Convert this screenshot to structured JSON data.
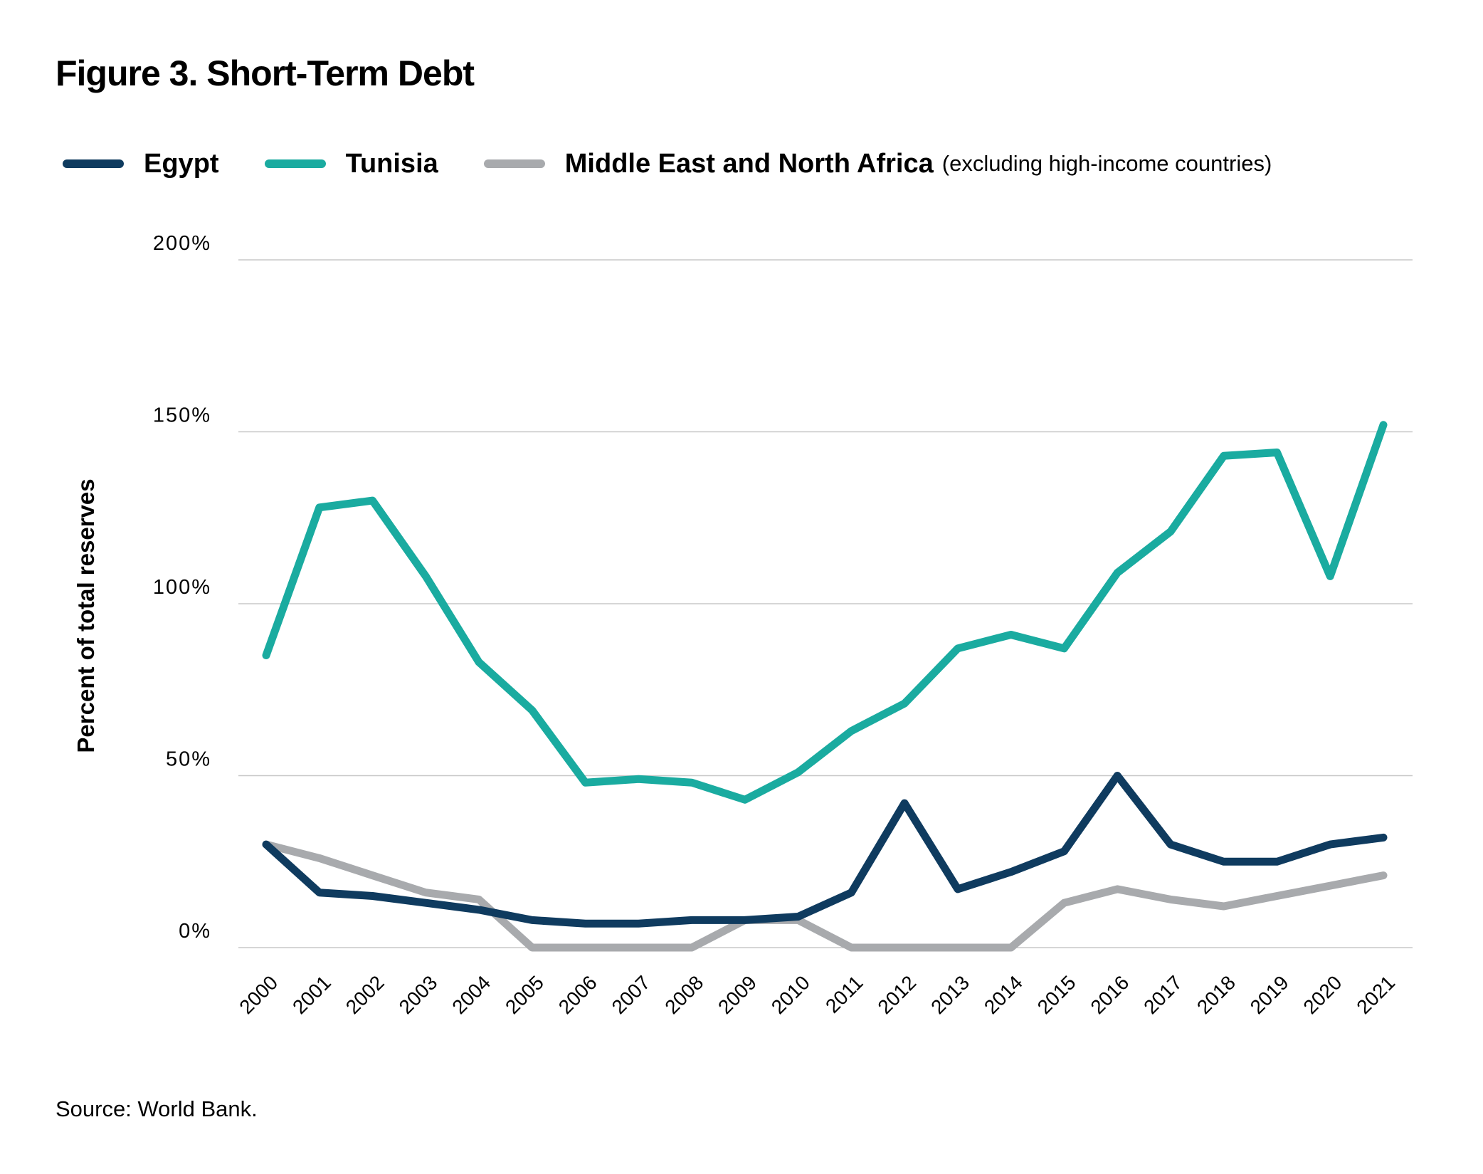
{
  "chart_data": {
    "type": "line",
    "title": "Figure 3. Short-Term Debt",
    "ylabel": "Percent of total reserves",
    "xlabel": "",
    "ylim": [
      0,
      200
    ],
    "yticks": [
      {
        "value": 0,
        "label": "0%"
      },
      {
        "value": 50,
        "label": "50%"
      },
      {
        "value": 100,
        "label": "100%"
      },
      {
        "value": 150,
        "label": "150%"
      },
      {
        "value": 200,
        "label": "200%"
      }
    ],
    "x": [
      "2000",
      "2001",
      "2002",
      "2003",
      "2004",
      "2005",
      "2006",
      "2007",
      "2008",
      "2009",
      "2010",
      "2011",
      "2012",
      "2013",
      "2014",
      "2015",
      "2016",
      "2017",
      "2018",
      "2019",
      "2020",
      "2021"
    ],
    "grid": "horizontal",
    "legend_position": "top",
    "series": [
      {
        "name": "Egypt",
        "color": "#0f3b5f",
        "values": [
          30,
          16,
          15,
          13,
          11,
          8,
          7,
          7,
          8,
          8,
          9,
          16,
          42,
          17,
          22,
          28,
          50,
          30,
          25,
          25,
          30,
          32
        ]
      },
      {
        "name": "Tunisia",
        "color": "#1aaba0",
        "values": [
          85,
          128,
          130,
          108,
          83,
          69,
          48,
          49,
          48,
          43,
          51,
          63,
          71,
          87,
          91,
          87,
          109,
          121,
          143,
          144,
          108,
          152
        ]
      },
      {
        "name": "Middle East and North Africa",
        "note": "(excluding high-income countries)",
        "color": "#a8aaad",
        "values": [
          30,
          26,
          21,
          16,
          14,
          0,
          0,
          0,
          0,
          8,
          8,
          0,
          0,
          0,
          0,
          13,
          17,
          14,
          12,
          15,
          18,
          21
        ]
      }
    ],
    "source": "Source: World Bank."
  }
}
